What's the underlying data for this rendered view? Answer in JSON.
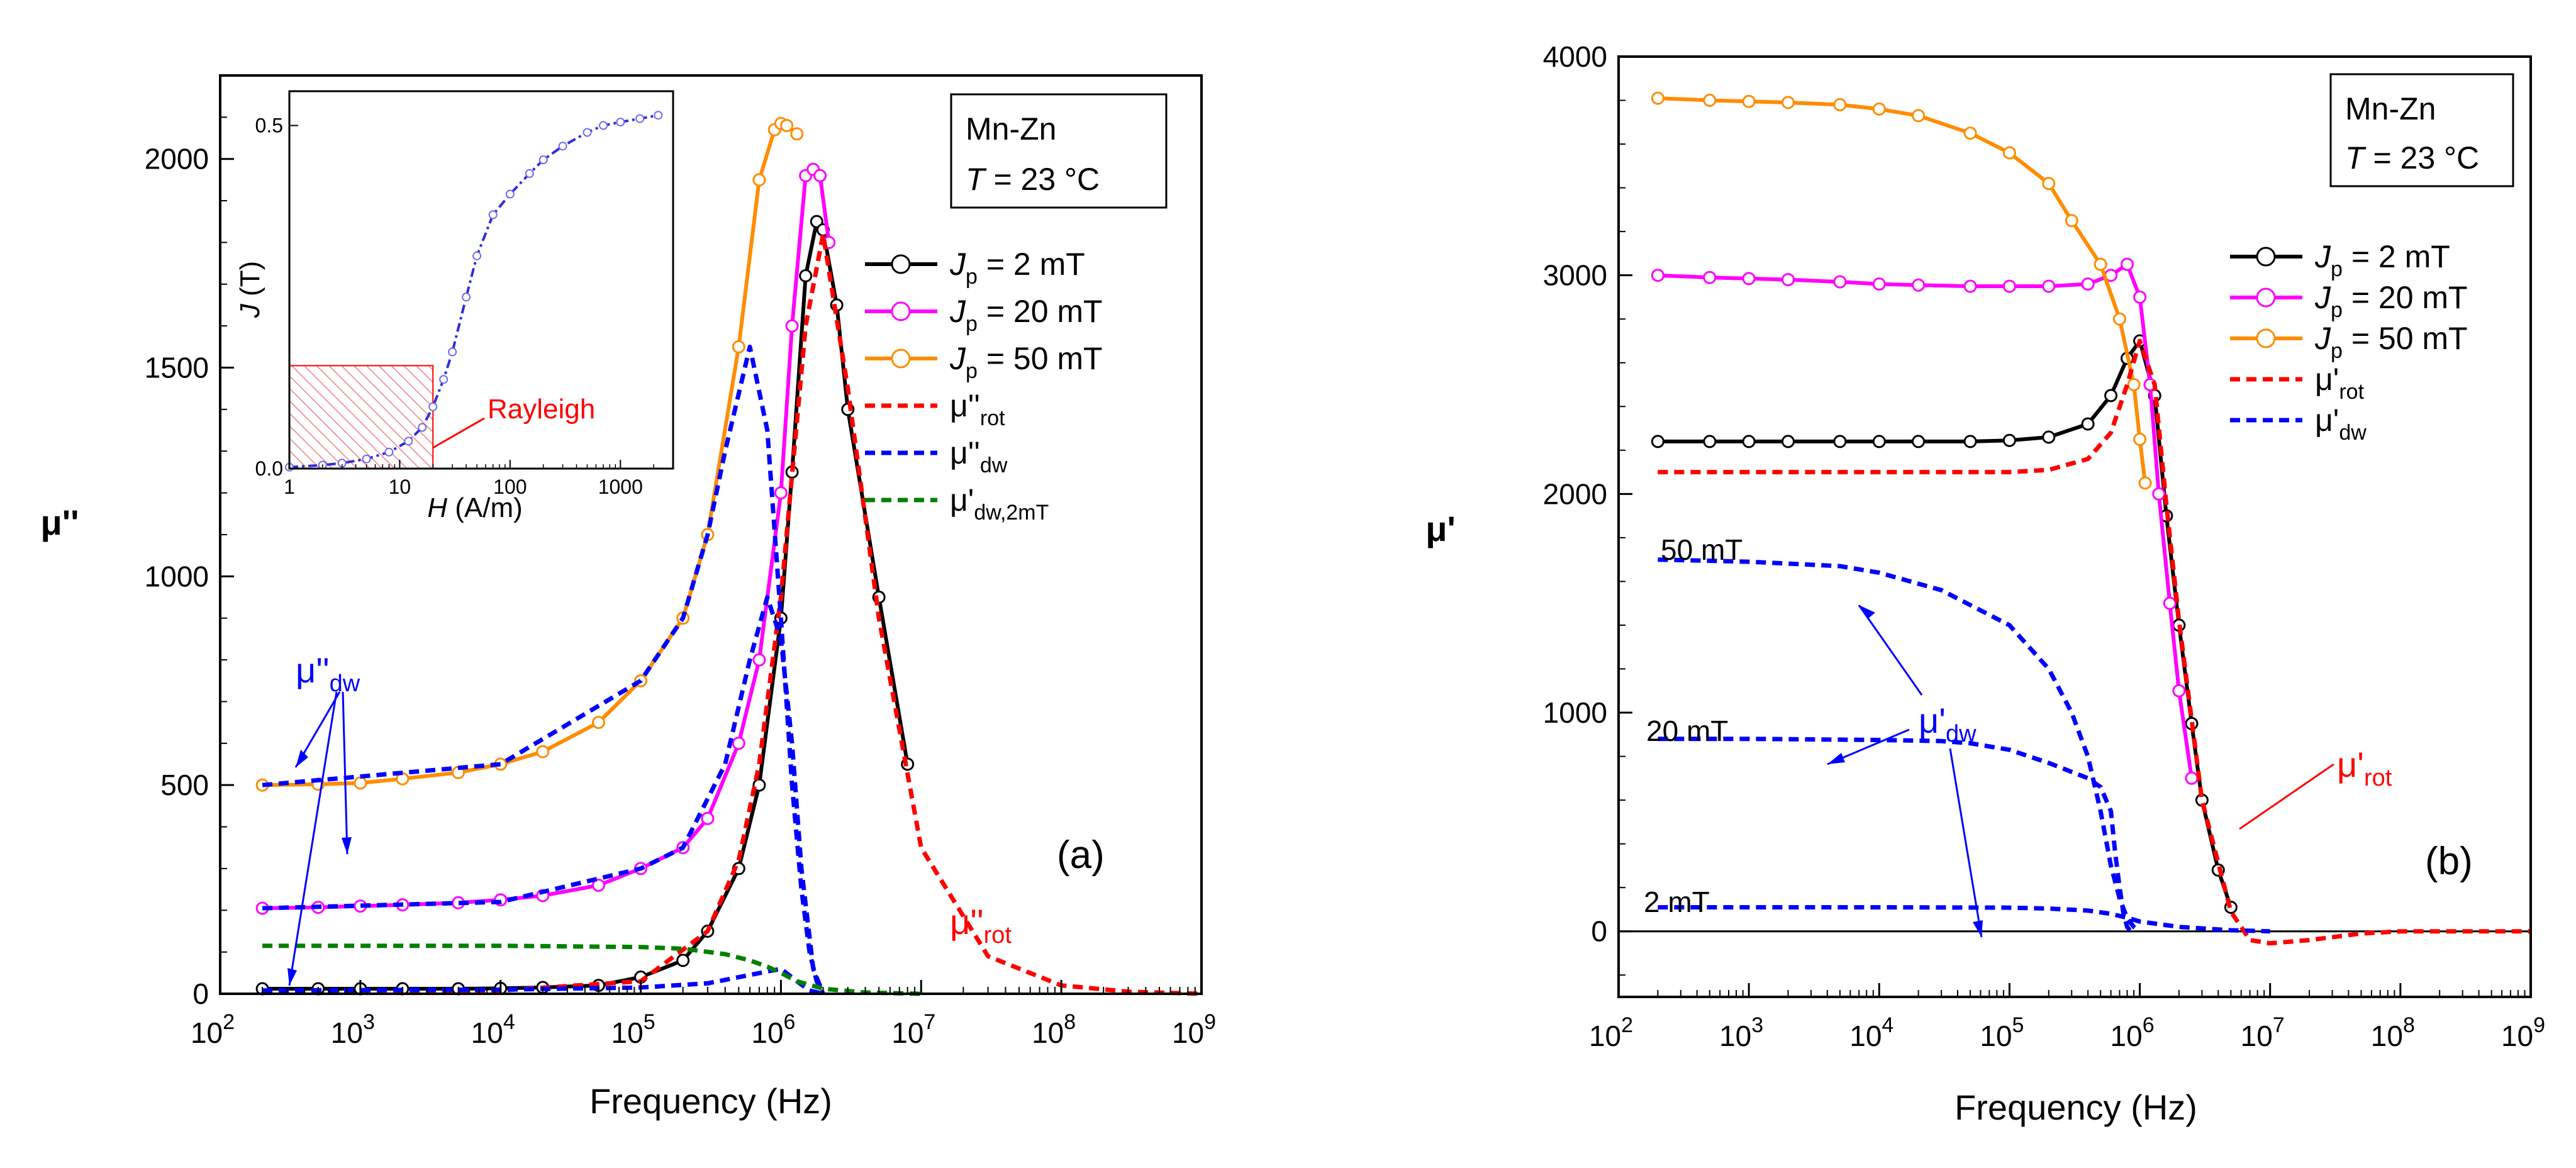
{
  "chart_data": [
    {
      "id": "a",
      "type": "line",
      "panel_label": "(a)",
      "xlabel": "Frequency (Hz)",
      "ylabel": "μ''",
      "xscale": "log",
      "xlim": [
        100,
        1000000000
      ],
      "ylim": [
        0,
        2200
      ],
      "x_ticks": [
        {
          "base": "10",
          "exp": "2"
        },
        {
          "base": "10",
          "exp": "3"
        },
        {
          "base": "10",
          "exp": "4"
        },
        {
          "base": "10",
          "exp": "5"
        },
        {
          "base": "10",
          "exp": "6"
        },
        {
          "base": "10",
          "exp": "7"
        },
        {
          "base": "10",
          "exp": "8"
        },
        {
          "base": "10",
          "exp": "9"
        }
      ],
      "y_ticks": [
        "0",
        "500",
        "1000",
        "1500",
        "2000"
      ],
      "infobox": {
        "line1": "Mn-Zn",
        "t_symbol": "T",
        "t_rest": " = 23 °C"
      },
      "legend": [
        {
          "sym": "J",
          "sub": "p",
          "rest": " = 2 mT",
          "color": "#000000",
          "style": "solid-marker"
        },
        {
          "sym": "J",
          "sub": "p",
          "rest": " = 20 mT",
          "color": "#ff00ff",
          "style": "solid-marker"
        },
        {
          "sym": "J",
          "sub": "p",
          "rest": " = 50 mT",
          "color": "#ff8c00",
          "style": "solid-marker"
        },
        {
          "sym": "μ''",
          "sub": "rot",
          "rest": "",
          "color": "#ff0000",
          "style": "dashed"
        },
        {
          "sym": "μ''",
          "sub": "dw",
          "rest": "",
          "color": "#0000ff",
          "style": "dashed"
        },
        {
          "sym": "μ'",
          "sub": "dw,2mT",
          "rest": "",
          "color": "#008000",
          "style": "dashed"
        }
      ],
      "annotations": {
        "mu_dw": {
          "sym": "μ''",
          "sub": "dw"
        },
        "mu_rot": {
          "sym": "μ''",
          "sub": "rot"
        }
      },
      "series": [
        {
          "name": "Jp = 2 mT",
          "color": "#000000",
          "style": "solid",
          "marker": true,
          "x": [
            200,
            500,
            1000,
            2000,
            5000,
            10000,
            20000,
            50000,
            100000,
            200000,
            300000,
            500000,
            700000,
            1000000,
            1200000,
            1500000,
            1800000,
            2000000,
            2500000,
            3000000,
            5000000,
            8000000
          ],
          "y": [
            12,
            12,
            12,
            12,
            12,
            13,
            15,
            20,
            40,
            80,
            150,
            300,
            500,
            900,
            1250,
            1720,
            1850,
            1830,
            1650,
            1400,
            950,
            550
          ]
        },
        {
          "name": "Jp = 20 mT",
          "color": "#ff00ff",
          "style": "solid",
          "marker": true,
          "x": [
            200,
            500,
            1000,
            2000,
            5000,
            10000,
            20000,
            50000,
            100000,
            200000,
            300000,
            500000,
            700000,
            1000000,
            1200000,
            1500000,
            1700000,
            1900000,
            2200000
          ],
          "y": [
            205,
            207,
            210,
            213,
            218,
            225,
            235,
            260,
            300,
            350,
            420,
            600,
            800,
            1200,
            1600,
            1960,
            1975,
            1960,
            1800
          ]
        },
        {
          "name": "Jp = 50 mT",
          "color": "#ff8c00",
          "style": "solid",
          "marker": true,
          "x": [
            200,
            500,
            1000,
            2000,
            5000,
            10000,
            20000,
            50000,
            100000,
            200000,
            300000,
            500000,
            700000,
            900000,
            1000000,
            1100000,
            1300000
          ],
          "y": [
            500,
            502,
            505,
            515,
            530,
            550,
            580,
            650,
            750,
            900,
            1100,
            1550,
            1950,
            2070,
            2085,
            2080,
            2060
          ]
        },
        {
          "name": "μ''rot",
          "color": "#ff0000",
          "style": "dashed",
          "marker": false,
          "x": [
            200,
            10000,
            100000,
            300000,
            500000,
            700000,
            1000000,
            1500000,
            2000000,
            3000000,
            5000000,
            10000000,
            30000000,
            100000000,
            300000000,
            1000000000
          ],
          "y": [
            5,
            8,
            30,
            150,
            320,
            550,
            950,
            1600,
            1820,
            1450,
            900,
            350,
            90,
            20,
            5,
            0
          ]
        },
        {
          "name": "μ''dw (2 mT)",
          "color": "#0000ff",
          "style": "dashed",
          "marker": false,
          "x": [
            200,
            10000,
            100000,
            300000,
            600000,
            1000000,
            1300000,
            1600000,
            2000000
          ],
          "y": [
            8,
            10,
            15,
            25,
            45,
            60,
            30,
            8,
            0
          ]
        },
        {
          "name": "μ''dw (20 mT)",
          "color": "#0000ff",
          "style": "dashed",
          "marker": false,
          "x": [
            200,
            10000,
            100000,
            200000,
            400000,
            600000,
            800000,
            1000000,
            1200000,
            1400000,
            1700000,
            2000000
          ],
          "y": [
            205,
            220,
            300,
            350,
            550,
            800,
            950,
            850,
            600,
            300,
            60,
            0
          ]
        },
        {
          "name": "μ''dw (50 mT)",
          "color": "#0000ff",
          "style": "dashed",
          "marker": false,
          "x": [
            200,
            10000,
            100000,
            200000,
            300000,
            400000,
            600000,
            800000,
            1000000,
            1200000,
            1400000,
            1600000,
            1800000,
            2000000
          ],
          "y": [
            500,
            550,
            750,
            900,
            1100,
            1300,
            1550,
            1350,
            900,
            500,
            250,
            100,
            30,
            0
          ]
        },
        {
          "name": "μ'dw,2mT",
          "color": "#008000",
          "style": "dashed",
          "marker": false,
          "x": [
            200,
            10000,
            100000,
            200000,
            400000,
            600000,
            800000,
            1000000,
            1300000,
            2000000,
            4000000,
            10000000
          ],
          "y": [
            115,
            115,
            112,
            108,
            95,
            80,
            65,
            50,
            30,
            12,
            3,
            0
          ]
        }
      ],
      "inset": {
        "xlabel_sym": "H",
        "xlabel_rest": " (A/m)",
        "ylabel_sym": "J",
        "ylabel_rest": " (T)",
        "xlim": [
          1,
          3000
        ],
        "ylim": [
          0,
          0.55
        ],
        "x_ticks": [
          "1",
          "10",
          "100",
          "1000"
        ],
        "y_ticks": [
          "0.0",
          "0.5"
        ],
        "rayleigh_label": "Rayleigh",
        "rayleigh_region": {
          "H_max": 20,
          "J_max": 0.15
        },
        "curve": {
          "x": [
            1,
            2,
            3,
            5,
            8,
            12,
            16,
            20,
            25,
            30,
            40,
            50,
            70,
            100,
            150,
            200,
            300,
            500,
            700,
            1000,
            1500,
            2200
          ],
          "y": [
            0.002,
            0.005,
            0.008,
            0.014,
            0.024,
            0.04,
            0.06,
            0.09,
            0.13,
            0.17,
            0.25,
            0.31,
            0.37,
            0.4,
            0.43,
            0.45,
            0.47,
            0.49,
            0.5,
            0.505,
            0.51,
            0.515
          ]
        }
      }
    },
    {
      "id": "b",
      "type": "line",
      "panel_label": "(b)",
      "xlabel": "Frequency (Hz)",
      "ylabel": "μ'",
      "xscale": "log",
      "xlim": [
        100,
        1000000000
      ],
      "ylim": [
        -300,
        4000
      ],
      "x_ticks": [
        {
          "base": "10",
          "exp": "2"
        },
        {
          "base": "10",
          "exp": "3"
        },
        {
          "base": "10",
          "exp": "4"
        },
        {
          "base": "10",
          "exp": "5"
        },
        {
          "base": "10",
          "exp": "6"
        },
        {
          "base": "10",
          "exp": "7"
        },
        {
          "base": "10",
          "exp": "8"
        },
        {
          "base": "10",
          "exp": "9"
        }
      ],
      "y_ticks": [
        "0",
        "1000",
        "2000",
        "3000",
        "4000"
      ],
      "infobox": {
        "line1": "Mn-Zn",
        "t_symbol": "T",
        "t_rest": " = 23 °C"
      },
      "legend": [
        {
          "sym": "J",
          "sub": "p",
          "rest": " = 2 mT",
          "color": "#000000",
          "style": "solid-marker"
        },
        {
          "sym": "J",
          "sub": "p",
          "rest": " = 20 mT",
          "color": "#ff00ff",
          "style": "solid-marker"
        },
        {
          "sym": "J",
          "sub": "p",
          "rest": " = 50 mT",
          "color": "#ff8c00",
          "style": "solid-marker"
        },
        {
          "sym": "μ'",
          "sub": "rot",
          "rest": "",
          "color": "#ff0000",
          "style": "dashed"
        },
        {
          "sym": "μ'",
          "sub": "dw",
          "rest": "",
          "color": "#0000ff",
          "style": "dashed"
        }
      ],
      "annotations": {
        "label_50": "50 mT",
        "label_20": "20 mT",
        "label_2": "2 mT",
        "mu_dw": {
          "sym": "μ'",
          "sub": "dw"
        },
        "mu_rot": {
          "sym": "μ'",
          "sub": "rot"
        }
      },
      "series": [
        {
          "name": "Jp = 2 mT",
          "color": "#000000",
          "style": "solid",
          "marker": true,
          "x": [
            200,
            500,
            1000,
            2000,
            5000,
            10000,
            20000,
            50000,
            100000,
            200000,
            400000,
            600000,
            800000,
            1000000,
            1300000,
            1600000,
            2000000,
            2500000,
            3000000,
            4000000,
            5000000
          ],
          "y": [
            2240,
            2240,
            2240,
            2240,
            2240,
            2240,
            2240,
            2240,
            2245,
            2260,
            2320,
            2450,
            2620,
            2700,
            2450,
            1900,
            1400,
            950,
            600,
            280,
            110
          ]
        },
        {
          "name": "Jp = 20 mT",
          "color": "#ff00ff",
          "style": "solid",
          "marker": true,
          "x": [
            200,
            500,
            1000,
            2000,
            5000,
            10000,
            20000,
            50000,
            100000,
            200000,
            400000,
            600000,
            800000,
            1000000,
            1200000,
            1400000,
            1700000,
            2000000,
            2500000
          ],
          "y": [
            3000,
            2990,
            2985,
            2980,
            2970,
            2960,
            2955,
            2950,
            2950,
            2950,
            2960,
            3000,
            3050,
            2900,
            2500,
            2000,
            1500,
            1100,
            700
          ]
        },
        {
          "name": "Jp = 50 mT",
          "color": "#ff8c00",
          "style": "solid",
          "marker": true,
          "x": [
            200,
            500,
            1000,
            2000,
            5000,
            10000,
            20000,
            50000,
            100000,
            200000,
            300000,
            500000,
            700000,
            900000,
            1000000,
            1100000
          ],
          "y": [
            3810,
            3800,
            3795,
            3790,
            3780,
            3760,
            3730,
            3650,
            3560,
            3420,
            3250,
            3050,
            2800,
            2500,
            2250,
            2050
          ]
        },
        {
          "name": "μ'rot",
          "color": "#ff0000",
          "style": "dashed",
          "marker": false,
          "x": [
            200,
            10000,
            100000,
            200000,
            400000,
            600000,
            800000,
            1000000,
            1300000,
            1600000,
            2000000,
            3000000,
            5000000,
            7000000,
            10000000,
            20000000,
            50000000,
            100000000,
            1000000000
          ],
          "y": [
            2100,
            2100,
            2100,
            2110,
            2160,
            2280,
            2500,
            2700,
            2500,
            1950,
            1420,
            600,
            90,
            -40,
            -55,
            -40,
            -10,
            0,
            0
          ]
        },
        {
          "name": "μ'dw (50 mT)",
          "color": "#0000ff",
          "style": "dashed",
          "marker": false,
          "x": [
            200,
            1000,
            5000,
            10000,
            30000,
            100000,
            200000,
            300000,
            400000,
            500000,
            600000,
            700000,
            800000,
            900000,
            1000000
          ],
          "y": [
            1700,
            1690,
            1670,
            1640,
            1560,
            1400,
            1200,
            1000,
            800,
            550,
            300,
            150,
            60,
            20,
            0
          ]
        },
        {
          "name": "μ'dw (20 mT)",
          "color": "#0000ff",
          "style": "dashed",
          "marker": false,
          "x": [
            200,
            1000,
            10000,
            30000,
            50000,
            100000,
            200000,
            400000,
            500000,
            600000,
            650000,
            700000,
            750000,
            800000,
            850000
          ],
          "y": [
            880,
            880,
            875,
            870,
            860,
            830,
            770,
            700,
            660,
            550,
            350,
            200,
            80,
            20,
            0
          ]
        },
        {
          "name": "μ'dw (2 mT)",
          "color": "#0000ff",
          "style": "dashed",
          "marker": false,
          "x": [
            200,
            10000,
            100000,
            200000,
            400000,
            600000,
            800000,
            1000000,
            2000000,
            5000000,
            10000000
          ],
          "y": [
            110,
            110,
            108,
            104,
            95,
            80,
            62,
            45,
            20,
            5,
            0
          ]
        }
      ]
    }
  ]
}
